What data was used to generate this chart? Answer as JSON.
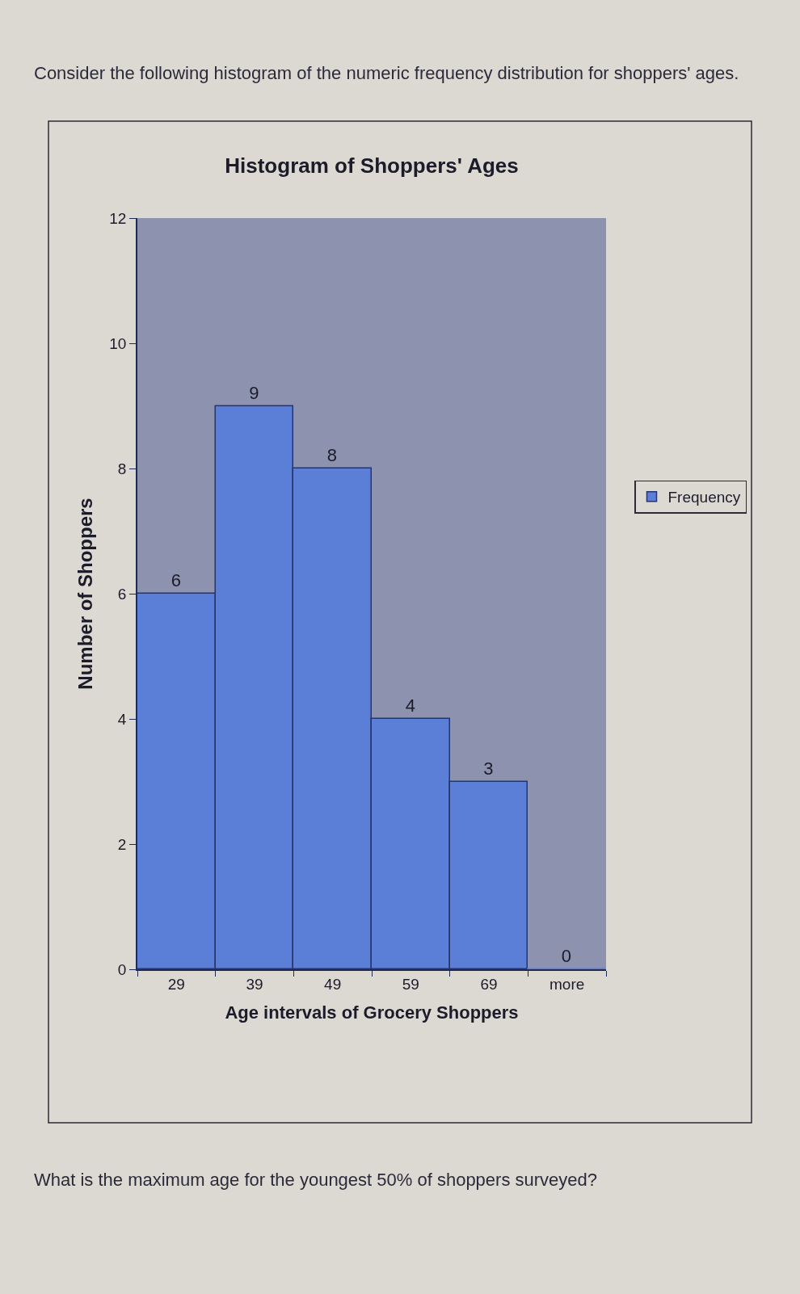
{
  "chart_data": {
    "type": "bar",
    "title": "Histogram of Shoppers' Ages",
    "xlabel": "Age intervals of Grocery Shoppers",
    "ylabel": "Number of Shoppers",
    "categories": [
      "29",
      "39",
      "49",
      "59",
      "69",
      "more"
    ],
    "series": [
      {
        "name": "Frequency",
        "color": "#5b7fd6",
        "values": [
          6,
          9,
          8,
          4,
          3,
          0
        ]
      }
    ],
    "ylim": [
      0,
      12
    ],
    "yticks": [
      0,
      2,
      4,
      6,
      8,
      10,
      12
    ],
    "grid": false,
    "legend": "right",
    "data_labels": true,
    "annotations": [
      "Consider the following histogram of the numeric frequency distribution for shoppers' ages.",
      "What is the maximum age for the youngest 50% of shoppers surveyed?"
    ]
  }
}
